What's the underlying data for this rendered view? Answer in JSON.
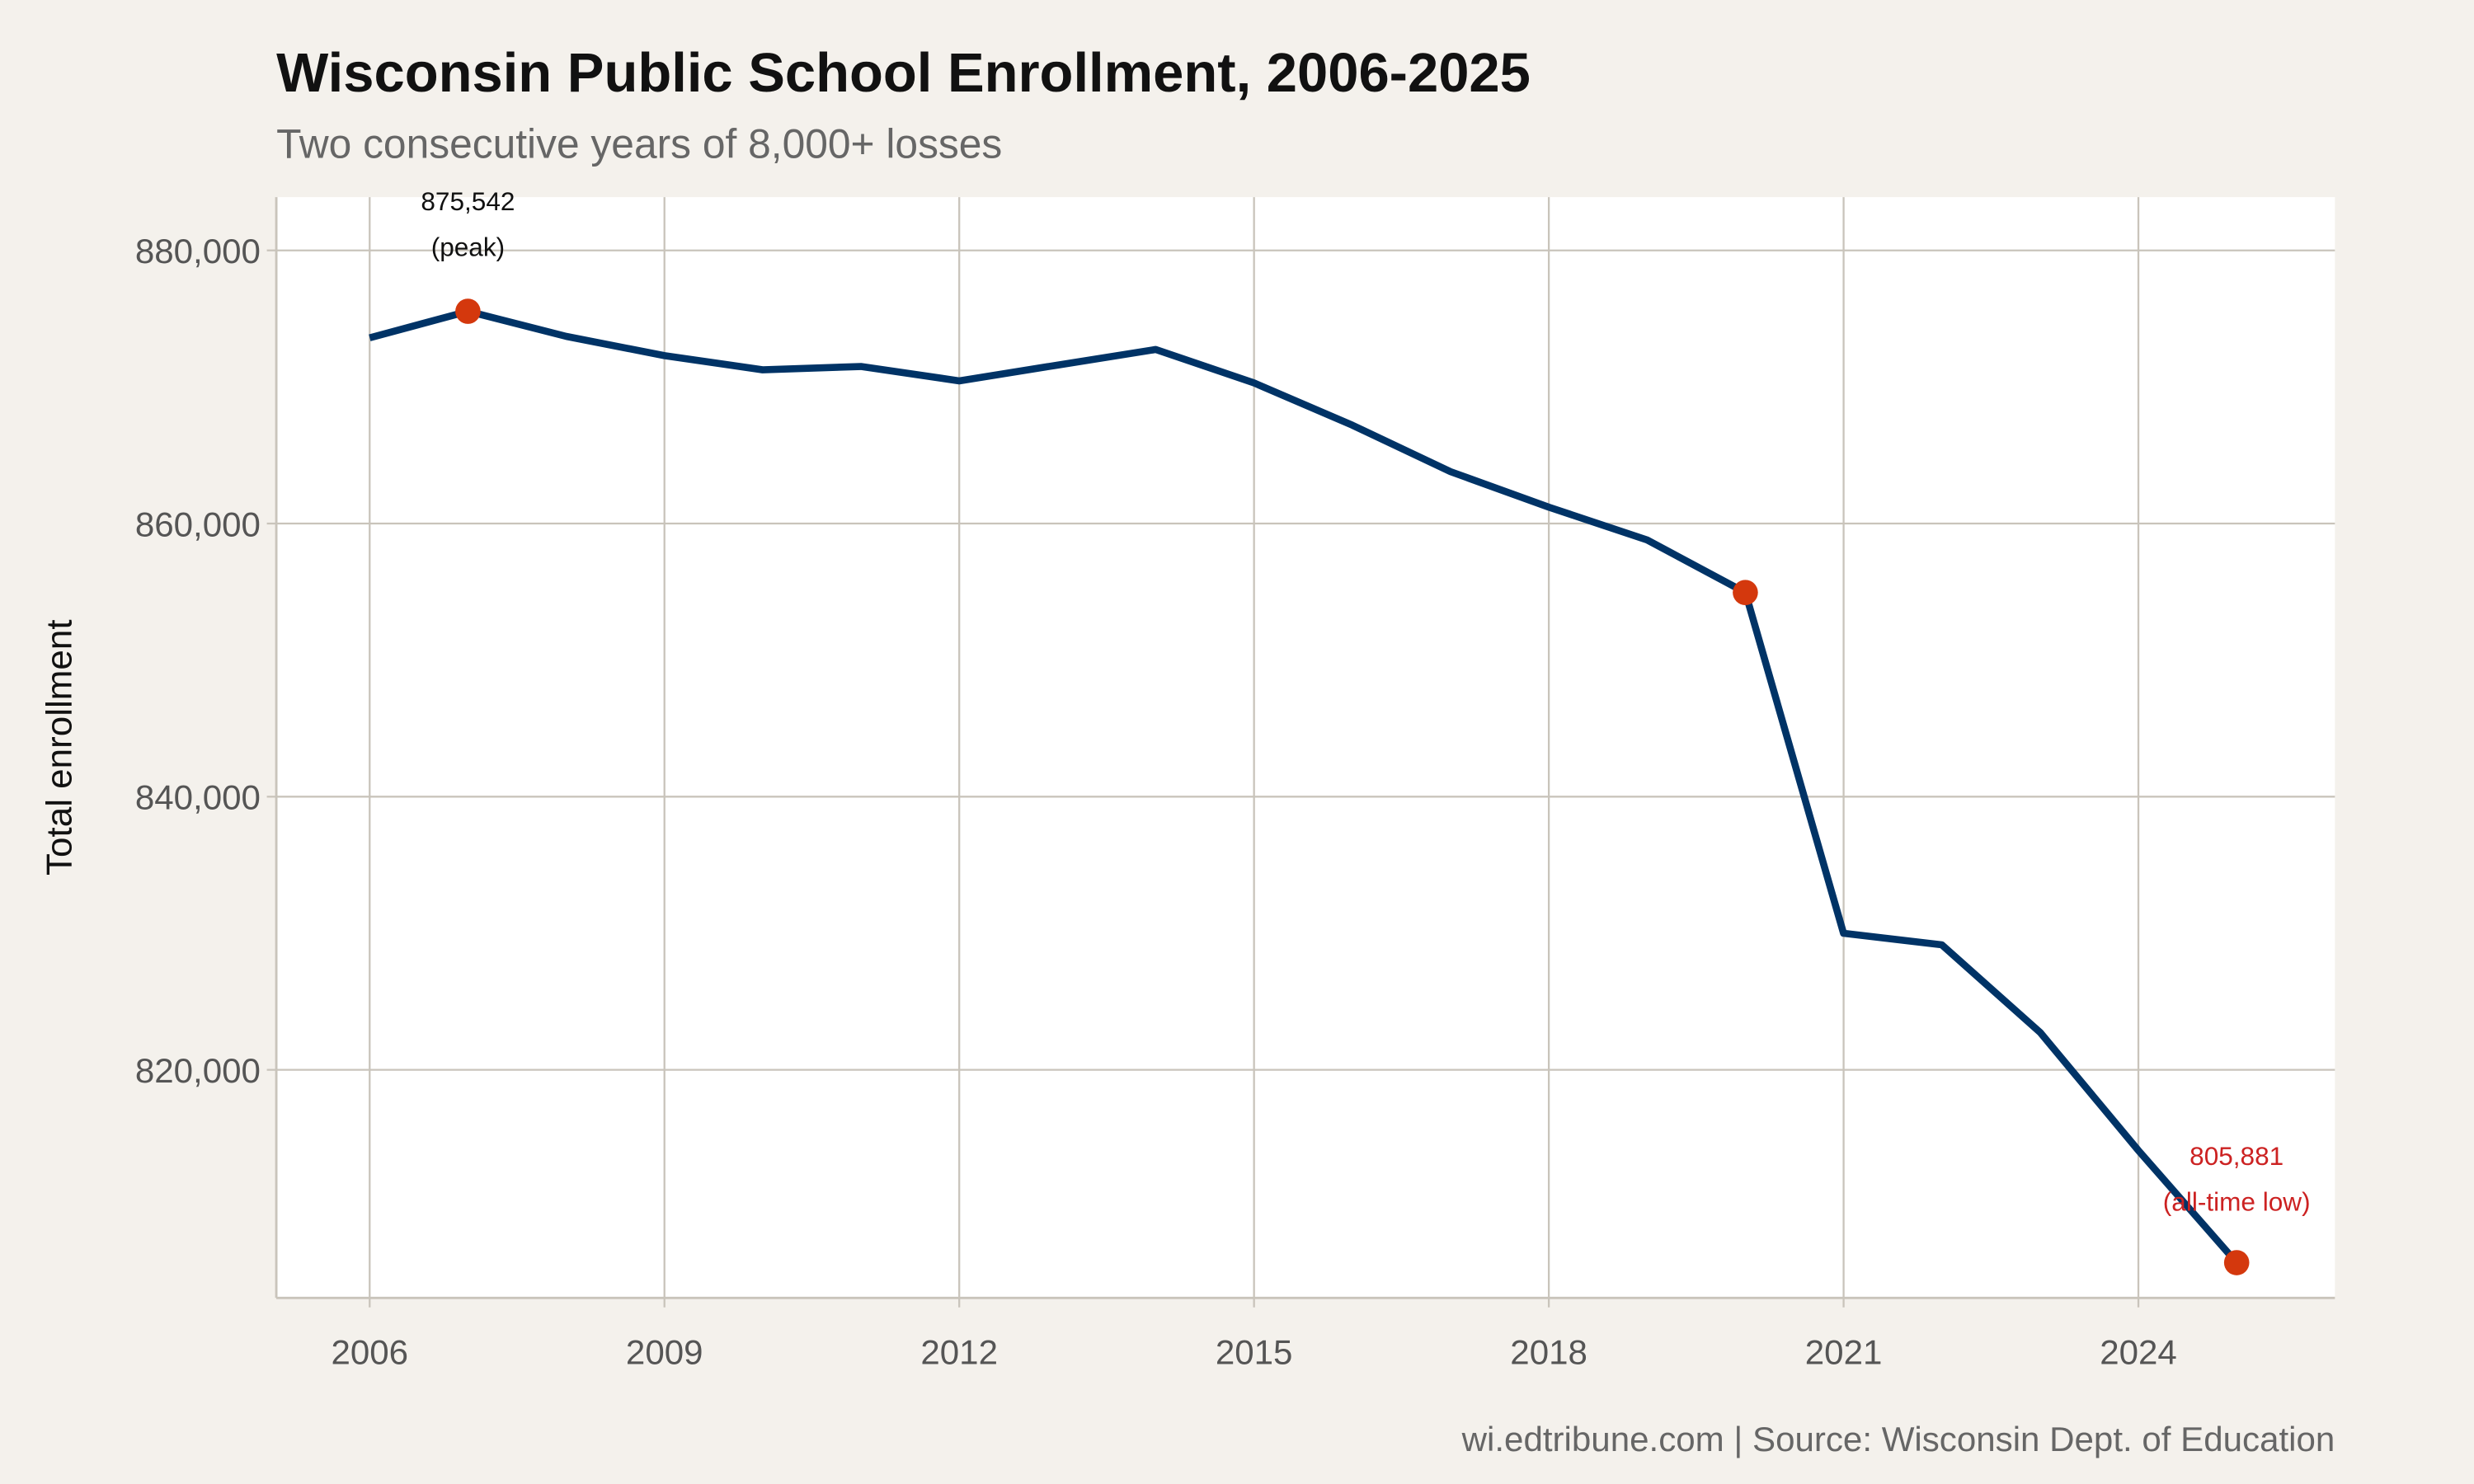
{
  "chart_data": {
    "type": "line",
    "title": "Wisconsin Public School Enrollment, 2006-2025",
    "subtitle": "Two consecutive years of 8,000+ losses",
    "xlabel": "",
    "ylabel": "Total enrollment",
    "caption": "wi.edtribune.com | Source: Wisconsin Dept. of Education",
    "xlim": [
      2005.05,
      2026.0
    ],
    "ylim": [
      803300,
      883900
    ],
    "x_ticks": [
      2006,
      2009,
      2012,
      2015,
      2018,
      2021,
      2024
    ],
    "x_tick_labels": [
      "2006",
      "2009",
      "2012",
      "2015",
      "2018",
      "2021",
      "2024"
    ],
    "y_ticks": [
      820000,
      840000,
      860000,
      880000
    ],
    "y_tick_labels": [
      "820,000",
      "840,000",
      "860,000",
      "880,000"
    ],
    "grid": true,
    "x": [
      2006,
      2007,
      2008,
      2009,
      2010,
      2011,
      2012,
      2013,
      2014,
      2015,
      2016,
      2017,
      2018,
      2019,
      2020,
      2021,
      2022,
      2023,
      2024,
      2025
    ],
    "values": [
      873600,
      875542,
      873700,
      872300,
      871250,
      871500,
      870450,
      871600,
      872750,
      870300,
      867200,
      863800,
      861200,
      858800,
      854950,
      830000,
      829150,
      822750,
      814100,
      805881
    ],
    "highlight_years": [
      2007,
      2020,
      2025
    ],
    "annotations": [
      {
        "x": 2007,
        "line1": "875,542",
        "line2": "(peak)",
        "color": "#111111"
      },
      {
        "x": 2025,
        "line1": "805,881",
        "line2": "(all-time low)",
        "color": "#cc2222"
      }
    ],
    "colors": {
      "line": "#003366",
      "highlight": "#d4380d",
      "background": "#f4f1ec",
      "panel": "#ffffff",
      "grid": "#c9c4bb"
    }
  }
}
